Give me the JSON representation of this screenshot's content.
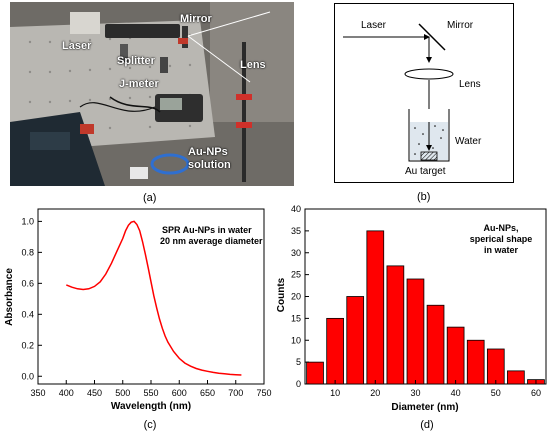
{
  "panel_a": {
    "labels": {
      "mirror": "Mirror",
      "laser": "Laser",
      "splitter": "Splitter",
      "lens": "Lens",
      "jmeter": "J-meter",
      "solution_line1": "Au-NPs",
      "solution_line2": "solution"
    },
    "caption": "(a)"
  },
  "panel_b": {
    "labels": {
      "laser": "Laser",
      "mirror": "Mirror",
      "lens": "Lens",
      "water": "Water",
      "target": "Au target"
    },
    "caption": "(b)"
  },
  "panel_c": {
    "caption": "(c)"
  },
  "panel_d": {
    "caption": "(d)"
  },
  "colors": {
    "series": "#ff0000",
    "bar_stroke": "#000000"
  },
  "chart_data": [
    {
      "type": "line",
      "annotation_lines": [
        "SPR Au-NPs in water",
        "20 nm average diameter"
      ],
      "xlabel": "Wavelength (nm)",
      "ylabel": "Absorbance",
      "xlim": [
        350,
        750
      ],
      "ylim": [
        -0.05,
        1.08
      ],
      "xticks": [
        350,
        400,
        450,
        500,
        550,
        600,
        650,
        700,
        750
      ],
      "yticks": [
        0.0,
        0.2,
        0.4,
        0.6,
        0.8,
        1.0
      ],
      "ytick_labels": [
        "0.0",
        "0.2",
        "0.4",
        "0.6",
        "0.8",
        "1.0"
      ],
      "grid": false,
      "series": [
        {
          "x": [
            400,
            410,
            420,
            430,
            440,
            450,
            460,
            470,
            480,
            490,
            500,
            505,
            510,
            515,
            520,
            525,
            530,
            535,
            540,
            545,
            550,
            555,
            560,
            565,
            570,
            575,
            580,
            590,
            600,
            610,
            620,
            630,
            640,
            650,
            660,
            670,
            680,
            690,
            700,
            710
          ],
          "y": [
            0.59,
            0.575,
            0.565,
            0.56,
            0.565,
            0.58,
            0.61,
            0.66,
            0.73,
            0.81,
            0.89,
            0.94,
            0.975,
            0.995,
            1.0,
            0.98,
            0.94,
            0.87,
            0.79,
            0.7,
            0.61,
            0.52,
            0.44,
            0.37,
            0.31,
            0.26,
            0.22,
            0.16,
            0.115,
            0.085,
            0.065,
            0.05,
            0.04,
            0.032,
            0.025,
            0.02,
            0.016,
            0.012,
            0.01,
            0.008
          ]
        }
      ]
    },
    {
      "type": "bar",
      "annotation_lines": [
        "Au-NPs,",
        "sperical shape",
        "in water"
      ],
      "xlabel": "Diameter (nm)",
      "ylabel": "Counts",
      "xlim": [
        2.5,
        62.5
      ],
      "ylim": [
        0,
        40
      ],
      "xticks": [
        10,
        20,
        30,
        40,
        50,
        60
      ],
      "yticks": [
        0,
        5,
        10,
        15,
        20,
        25,
        30,
        35,
        40
      ],
      "grid": false,
      "categories": [
        5,
        10,
        15,
        20,
        25,
        30,
        35,
        40,
        45,
        50,
        55,
        60
      ],
      "values": [
        5,
        15,
        20,
        35,
        27,
        24,
        18,
        13,
        10,
        8,
        3,
        1
      ]
    }
  ]
}
